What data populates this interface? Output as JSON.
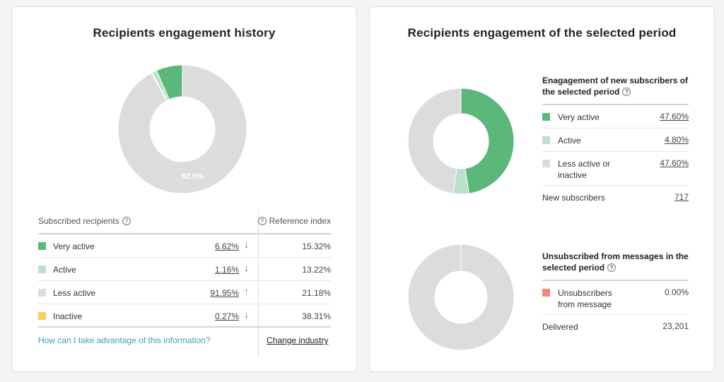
{
  "left": {
    "title": "Recipients engagement history",
    "donut_label": "92.0%",
    "table": {
      "col_subscribed": "Subscribed recipients",
      "col_reference": "Reference index",
      "rows": [
        {
          "label": "Very active",
          "value": "6.62%",
          "trend": "down",
          "trend_icon": "↓",
          "reference": "15.32%",
          "color": "#5cb87a"
        },
        {
          "label": "Active",
          "value": "1.16%",
          "trend": "down",
          "trend_icon": "↓",
          "reference": "13.22%",
          "color": "#b9e3c8"
        },
        {
          "label": "Less active",
          "value": "91.95%",
          "trend": "up",
          "trend_icon": "↑",
          "reference": "21.18%",
          "color": "#dcdcdc"
        },
        {
          "label": "Inactive",
          "value": "0.27%",
          "trend": "down",
          "trend_icon": "↓",
          "reference": "38.31%",
          "color": "#f4cf5a"
        }
      ]
    },
    "help_link": "How can I take advantage of this information?",
    "change_industry": "Change industry"
  },
  "right": {
    "title": "Recipients engagement of the selected period",
    "new_subscribers": {
      "heading": "Enagagement of new subscribers of the selected period",
      "rows": [
        {
          "label": "Very active",
          "value": "47.60%",
          "color": "#5cb87a"
        },
        {
          "label": "Active",
          "value": "4.80%",
          "color": "#b9e3c8"
        },
        {
          "label": "Less active or inactive",
          "value": "47.60%",
          "color": "#dcdcdc"
        }
      ],
      "total_label": "New subscribers",
      "total_value": "717"
    },
    "unsubscribed": {
      "heading": "Unsubscribed from messages in the selected period",
      "row_label": "Unsubscribers from message",
      "row_value": "0.00%",
      "row_color": "#ee8a7a",
      "delivered_label": "Delivered",
      "delivered_value": "23,201"
    }
  },
  "chart_data": [
    {
      "type": "pie",
      "title": "Recipients engagement history",
      "categories": [
        "Very active",
        "Active",
        "Less active",
        "Inactive"
      ],
      "values": [
        6.62,
        1.16,
        91.95,
        0.27
      ],
      "data_labels": [
        "92.0%"
      ]
    },
    {
      "type": "pie",
      "title": "Engagement of new subscribers",
      "categories": [
        "Very active",
        "Active",
        "Less active or inactive"
      ],
      "values": [
        47.6,
        4.8,
        47.6
      ]
    },
    {
      "type": "pie",
      "title": "Unsubscribed from messages",
      "categories": [
        "Unsubscribers",
        "Delivered"
      ],
      "values": [
        0,
        100
      ]
    }
  ],
  "colors": {
    "very_active": "#5cb87a",
    "active": "#b9e3c8",
    "less_active": "#dcdcdc",
    "inactive": "#f4cf5a",
    "unsub": "#ee8a7a",
    "link": "#3a9fc0",
    "arrow_down": "#e04a3a",
    "arrow_up": "#5cb87a"
  }
}
